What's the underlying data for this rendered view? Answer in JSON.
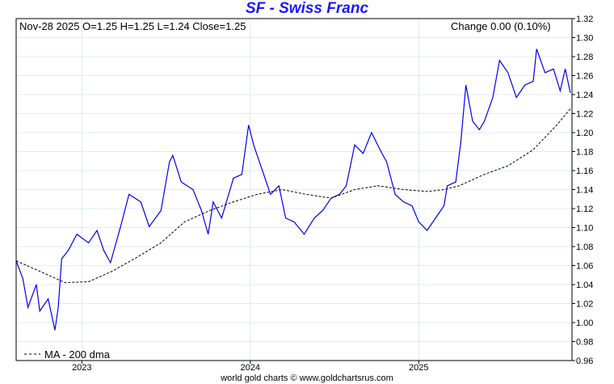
{
  "header": {
    "title": "SF  -  Swiss Franc",
    "info": "Nov-28  2025   O=1.25   H=1.25   L=1.24   Close=1.25",
    "change": "Change 0.00 (0.10%)"
  },
  "footer": "world gold charts © www.goldchartsrus.com",
  "chart_data": {
    "type": "line",
    "title": "SF - Swiss Franc",
    "ylim": [
      0.96,
      1.32
    ],
    "yticks": [
      "0.96",
      "0.98",
      "1.00",
      "1.02",
      "1.04",
      "1.06",
      "1.08",
      "1.10",
      "1.12",
      "1.14",
      "1.16",
      "1.18",
      "1.20",
      "1.22",
      "1.24",
      "1.26",
      "1.28",
      "1.30",
      "1.32"
    ],
    "xlim": [
      2022.61,
      2025.91
    ],
    "xticks": [
      {
        "label": "2023",
        "x": 2023
      },
      {
        "label": "2024",
        "x": 2024
      },
      {
        "label": "2025",
        "x": 2025
      }
    ],
    "legend": {
      "label": "MA - 200 dma",
      "position": "bottom-left"
    },
    "grid": true,
    "colors": {
      "price": "#0000ee",
      "ma": "#000000",
      "grid": "#dcebf8"
    },
    "series": [
      {
        "name": "SF",
        "x": [
          2022.61,
          2022.65,
          2022.68,
          2022.73,
          2022.75,
          2022.8,
          2022.84,
          2022.86,
          2022.88,
          2022.92,
          2022.97,
          2023.04,
          2023.09,
          2023.13,
          2023.17,
          2023.23,
          2023.28,
          2023.35,
          2023.4,
          2023.47,
          2023.52,
          2023.54,
          2023.59,
          2023.66,
          2023.71,
          2023.75,
          2023.78,
          2023.83,
          2023.9,
          2023.95,
          2023.99,
          2024.02,
          2024.07,
          2024.12,
          2024.17,
          2024.21,
          2024.26,
          2024.32,
          2024.38,
          2024.43,
          2024.48,
          2024.53,
          2024.57,
          2024.62,
          2024.67,
          2024.72,
          2024.77,
          2024.81,
          2024.86,
          2024.91,
          2024.96,
          2025.0,
          2025.05,
          2025.1,
          2025.15,
          2025.17,
          2025.22,
          2025.25,
          2025.28,
          2025.32,
          2025.36,
          2025.39,
          2025.44,
          2025.48,
          2025.53,
          2025.58,
          2025.63,
          2025.68,
          2025.7,
          2025.75,
          2025.8,
          2025.84,
          2025.87,
          2025.9
        ],
        "values": [
          1.065,
          1.046,
          1.016,
          1.04,
          1.012,
          1.025,
          0.992,
          1.016,
          1.067,
          1.076,
          1.093,
          1.084,
          1.097,
          1.076,
          1.063,
          1.101,
          1.135,
          1.127,
          1.101,
          1.118,
          1.169,
          1.176,
          1.148,
          1.14,
          1.118,
          1.093,
          1.127,
          1.11,
          1.152,
          1.156,
          1.208,
          1.187,
          1.161,
          1.135,
          1.144,
          1.11,
          1.106,
          1.093,
          1.11,
          1.118,
          1.131,
          1.135,
          1.144,
          1.187,
          1.178,
          1.2,
          1.182,
          1.169,
          1.135,
          1.127,
          1.123,
          1.106,
          1.097,
          1.11,
          1.123,
          1.144,
          1.148,
          1.19,
          1.25,
          1.212,
          1.203,
          1.212,
          1.237,
          1.276,
          1.263,
          1.237,
          1.25,
          1.254,
          1.288,
          1.263,
          1.267,
          1.244,
          1.267,
          1.242
        ]
      },
      {
        "name": "MA - 200 dma",
        "x": [
          2022.61,
          2022.75,
          2022.9,
          2023.04,
          2023.18,
          2023.33,
          2023.47,
          2023.61,
          2023.76,
          2023.9,
          2024.04,
          2024.19,
          2024.33,
          2024.48,
          2024.62,
          2024.76,
          2024.91,
          2025.05,
          2025.15,
          2025.24,
          2025.39,
          2025.53,
          2025.68,
          2025.82,
          2025.9
        ],
        "values": [
          1.065,
          1.054,
          1.042,
          1.043,
          1.054,
          1.069,
          1.084,
          1.106,
          1.118,
          1.127,
          1.135,
          1.14,
          1.135,
          1.131,
          1.14,
          1.144,
          1.14,
          1.138,
          1.14,
          1.144,
          1.156,
          1.165,
          1.182,
          1.208,
          1.225
        ]
      }
    ]
  }
}
